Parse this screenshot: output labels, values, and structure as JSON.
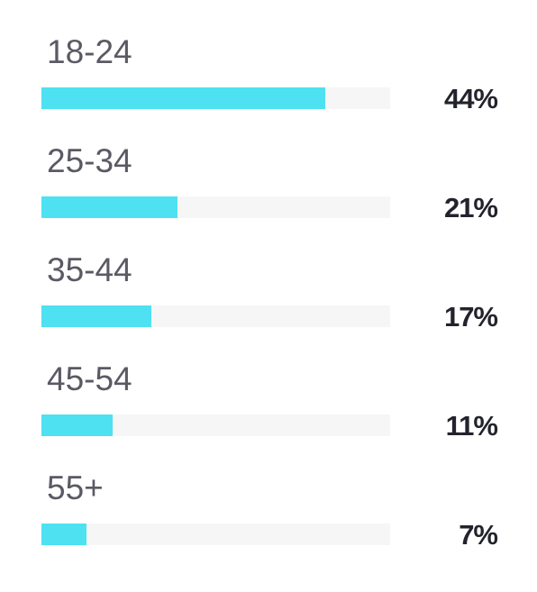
{
  "chart_data": {
    "type": "bar",
    "orientation": "horizontal",
    "categories": [
      "18-24",
      "25-34",
      "35-44",
      "45-54",
      "55+"
    ],
    "values": [
      44,
      21,
      17,
      11,
      7
    ],
    "value_labels": [
      "44%",
      "21%",
      "17%",
      "11%",
      "7%"
    ],
    "xlim": [
      0,
      54
    ],
    "bar_color": "#4de1f2",
    "track_color": "#f6f6f6",
    "title": "",
    "xlabel": "",
    "ylabel": "",
    "grid": false,
    "legend": "none"
  }
}
